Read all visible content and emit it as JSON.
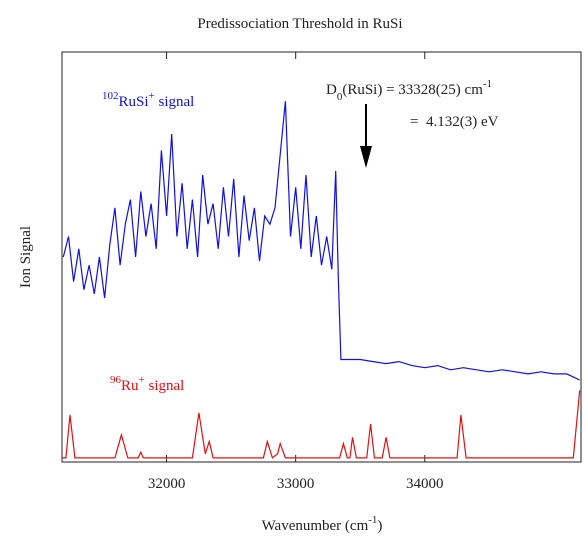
{
  "chart_data": {
    "type": "line",
    "title": "Predissociation Threshold in RuSi",
    "x_label": [
      "Wavenumber (cm",
      "-1",
      ")"
    ],
    "y_label": "Ion Signal",
    "xlim": [
      31190,
      35210
    ],
    "ylim": [
      0,
      100
    ],
    "xticks": [
      32000,
      33000,
      34000
    ],
    "annotation": {
      "line1": [
        "D",
        "0",
        "(RuSi) = 33328(25) cm",
        "-1"
      ],
      "line2": "=  4.132(3) eV"
    },
    "series": [
      {
        "name": [
          "102",
          "RuSi",
          "+",
          " signal"
        ],
        "color": "#1010e0",
        "x": [
          31200,
          31240,
          31280,
          31320,
          31360,
          31400,
          31440,
          31480,
          31520,
          31560,
          31600,
          31640,
          31680,
          31720,
          31760,
          31800,
          31840,
          31880,
          31920,
          31960,
          32000,
          32040,
          32080,
          32120,
          32160,
          32200,
          32240,
          32280,
          32320,
          32360,
          32400,
          32440,
          32480,
          32520,
          32560,
          32600,
          32640,
          32680,
          32720,
          32760,
          32800,
          32840,
          32880,
          32920,
          32960,
          33000,
          33040,
          33080,
          33120,
          33160,
          33200,
          33240,
          33280,
          33310,
          33330,
          33350,
          33400,
          33500,
          33600,
          33700,
          33800,
          33900,
          34000,
          34100,
          34200,
          34300,
          34400,
          34500,
          34600,
          34700,
          34800,
          34900,
          35000,
          35100,
          35200
        ],
        "values": [
          50,
          55,
          44,
          52,
          42,
          48,
          41,
          50,
          40,
          53,
          62,
          48,
          58,
          64,
          50,
          66,
          55,
          63,
          52,
          76,
          60,
          80,
          55,
          68,
          52,
          64,
          50,
          70,
          58,
          63,
          52,
          67,
          55,
          69,
          50,
          65,
          54,
          62,
          49,
          60,
          58,
          62,
          75,
          88,
          55,
          67,
          52,
          70,
          50,
          60,
          48,
          55,
          47,
          71,
          45,
          25,
          25,
          25,
          24.5,
          24,
          24.5,
          23.5,
          23,
          23.5,
          22.5,
          23,
          22.5,
          22,
          22.5,
          22,
          21.5,
          22,
          21.5,
          21.5,
          20
        ]
      },
      {
        "name": [
          "96",
          "Ru",
          "+",
          " signal"
        ],
        "color": "#e01010",
        "x": [
          31190,
          31220,
          31252,
          31290,
          31600,
          31650,
          31700,
          31780,
          31800,
          31820,
          32200,
          32250,
          32300,
          32330,
          32360,
          32750,
          32780,
          32820,
          32860,
          32880,
          32920,
          33340,
          33370,
          33400,
          33420,
          33440,
          33470,
          33550,
          33580,
          33610,
          33670,
          33700,
          33730,
          34250,
          34280,
          34320,
          35150,
          35200
        ],
        "values": [
          1,
          1,
          11.5,
          1,
          1,
          6.6,
          1,
          1,
          2.4,
          1,
          1,
          12,
          2,
          5,
          1,
          1,
          5,
          1,
          2,
          4.5,
          1,
          1,
          4.5,
          1,
          1,
          6,
          1,
          1,
          9.3,
          1,
          1,
          6,
          1,
          1,
          11.5,
          1,
          1,
          17.5
        ]
      }
    ]
  }
}
